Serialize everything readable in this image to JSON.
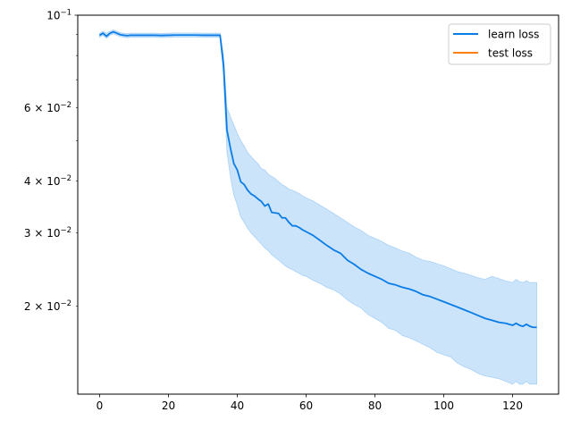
{
  "chart_data": {
    "type": "line",
    "yscale": "log",
    "xlim": [
      -6.35,
      133.35
    ],
    "ylim": [
      0.0123,
      0.1
    ],
    "x_ticks": [
      0,
      20,
      40,
      60,
      80,
      100,
      120
    ],
    "x_tick_labels": [
      "0",
      "20",
      "40",
      "60",
      "80",
      "100",
      "120"
    ],
    "y_major_ticks": [
      {
        "value": 0.1,
        "base": "10",
        "exp": "−1",
        "mult": ""
      }
    ],
    "y_minor_ticks": [
      {
        "value": 0.02,
        "base": "10",
        "exp": "−2",
        "mult": "2 × "
      },
      {
        "value": 0.03,
        "base": "10",
        "exp": "−2",
        "mult": "3 × "
      },
      {
        "value": 0.04,
        "base": "10",
        "exp": "−2",
        "mult": "4 × "
      },
      {
        "value": 0.06,
        "base": "10",
        "exp": "−2",
        "mult": "6 × "
      }
    ],
    "y_unlabeled_minor_ticks": [
      0.05,
      0.07,
      0.08,
      0.09
    ],
    "legend": {
      "placement": "upper right",
      "entries": [
        "learn loss",
        "test loss"
      ]
    },
    "grid": false,
    "series": [
      {
        "name": "learn loss",
        "color": "#1f77b4",
        "line_color": "#0a7ce6",
        "fill_color": "#cbe4fa",
        "fill_edge_color": "#a9d2f6",
        "x": [
          0,
          1,
          2,
          3,
          4,
          5,
          6,
          7,
          8,
          9,
          10,
          12,
          14,
          16,
          18,
          20,
          22,
          24,
          26,
          28,
          30,
          32,
          34,
          35,
          36,
          37,
          38,
          39,
          40,
          41,
          42,
          43,
          44,
          45,
          46,
          47,
          48,
          49,
          50,
          51,
          52,
          53,
          54,
          55,
          56,
          57,
          58,
          59,
          60,
          62,
          64,
          66,
          68,
          70,
          72,
          74,
          76,
          78,
          80,
          82,
          84,
          86,
          88,
          90,
          92,
          94,
          96,
          98,
          100,
          102,
          104,
          106,
          108,
          110,
          112,
          114,
          116,
          118,
          120,
          121,
          122,
          123,
          124,
          125,
          126,
          127
        ],
        "y": [
          0.0895,
          0.0905,
          0.089,
          0.0905,
          0.0912,
          0.0905,
          0.0898,
          0.0895,
          0.0893,
          0.0895,
          0.0895,
          0.0895,
          0.0895,
          0.0895,
          0.0894,
          0.0895,
          0.0896,
          0.0896,
          0.0896,
          0.0896,
          0.0895,
          0.0895,
          0.0895,
          0.0895,
          0.076,
          0.053,
          0.048,
          0.044,
          0.0425,
          0.0398,
          0.0392,
          0.038,
          0.0372,
          0.0368,
          0.0362,
          0.0357,
          0.0348,
          0.0352,
          0.0336,
          0.0335,
          0.0334,
          0.0326,
          0.0326,
          0.0318,
          0.0312,
          0.0312,
          0.0309,
          0.0305,
          0.0302,
          0.0296,
          0.0288,
          0.028,
          0.0273,
          0.0268,
          0.0258,
          0.0252,
          0.0245,
          0.024,
          0.0236,
          0.0232,
          0.0227,
          0.0225,
          0.0222,
          0.022,
          0.0217,
          0.0213,
          0.0211,
          0.0208,
          0.0205,
          0.0202,
          0.0199,
          0.0196,
          0.0193,
          0.019,
          0.0187,
          0.0185,
          0.0183,
          0.0182,
          0.018,
          0.0182,
          0.018,
          0.0179,
          0.0181,
          0.0179,
          0.0178,
          0.0178
        ],
        "y_upper": [
          0.0905,
          0.0915,
          0.0905,
          0.0915,
          0.0922,
          0.0915,
          0.0908,
          0.0905,
          0.0903,
          0.0905,
          0.0905,
          0.0905,
          0.0905,
          0.0905,
          0.0904,
          0.0905,
          0.0906,
          0.0906,
          0.0906,
          0.0906,
          0.0905,
          0.0905,
          0.0905,
          0.0905,
          0.08,
          0.06,
          0.057,
          0.0545,
          0.052,
          0.05,
          0.0485,
          0.0468,
          0.0458,
          0.0448,
          0.044,
          0.0428,
          0.0425,
          0.0415,
          0.041,
          0.0405,
          0.0398,
          0.0392,
          0.0388,
          0.0382,
          0.038,
          0.0376,
          0.0373,
          0.0368,
          0.0364,
          0.0358,
          0.035,
          0.0342,
          0.0334,
          0.0326,
          0.0318,
          0.031,
          0.0304,
          0.0296,
          0.0291,
          0.0286,
          0.028,
          0.0276,
          0.0271,
          0.0268,
          0.0262,
          0.0258,
          0.0256,
          0.0253,
          0.025,
          0.0246,
          0.0242,
          0.024,
          0.0237,
          0.0234,
          0.0232,
          0.0236,
          0.0233,
          0.023,
          0.0228,
          0.0232,
          0.0229,
          0.0228,
          0.023,
          0.0228,
          0.0228,
          0.0228
        ],
        "y_lower": [
          0.0885,
          0.0895,
          0.088,
          0.0895,
          0.0902,
          0.0895,
          0.0888,
          0.0885,
          0.0883,
          0.0885,
          0.0885,
          0.0885,
          0.0885,
          0.0885,
          0.0884,
          0.0885,
          0.0886,
          0.0886,
          0.0886,
          0.0886,
          0.0885,
          0.0885,
          0.0885,
          0.0885,
          0.072,
          0.047,
          0.041,
          0.037,
          0.035,
          0.0328,
          0.0318,
          0.0308,
          0.03,
          0.0294,
          0.0288,
          0.0282,
          0.0276,
          0.0272,
          0.0266,
          0.0262,
          0.0258,
          0.0254,
          0.025,
          0.0247,
          0.0245,
          0.0242,
          0.024,
          0.0237,
          0.0236,
          0.0231,
          0.0227,
          0.0222,
          0.0219,
          0.0214,
          0.0207,
          0.0202,
          0.0198,
          0.0191,
          0.0187,
          0.0183,
          0.0177,
          0.0175,
          0.017,
          0.0168,
          0.0165,
          0.0162,
          0.0159,
          0.0155,
          0.0153,
          0.0151,
          0.0146,
          0.0143,
          0.0141,
          0.0138,
          0.0136,
          0.0135,
          0.0134,
          0.0132,
          0.013,
          0.0132,
          0.013,
          0.013,
          0.0132,
          0.013,
          0.013,
          0.013
        ]
      },
      {
        "name": "test loss",
        "color": "#ff7f0e",
        "x": [],
        "y": []
      }
    ]
  }
}
